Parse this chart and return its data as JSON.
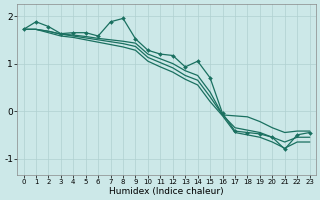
{
  "xlabel": "Humidex (Indice chaleur)",
  "bg_color": "#cce8e8",
  "grid_color": "#b0d0d0",
  "line_color": "#1a7060",
  "xlim": [
    -0.5,
    23.5
  ],
  "ylim": [
    -1.35,
    2.25
  ],
  "yticks": [
    -1,
    0,
    1,
    2
  ],
  "xticks": [
    0,
    1,
    2,
    3,
    4,
    5,
    6,
    7,
    8,
    9,
    10,
    11,
    12,
    13,
    14,
    15,
    16,
    17,
    18,
    19,
    20,
    21,
    22,
    23
  ],
  "line_jagged": [
    1.72,
    1.88,
    1.78,
    1.63,
    1.65,
    1.65,
    1.58,
    1.88,
    1.95,
    1.52,
    1.28,
    1.2,
    1.17,
    0.93,
    1.05,
    0.7,
    -0.05,
    -0.42,
    -0.45,
    -0.48,
    -0.55,
    -0.8,
    -0.5,
    -0.45
  ],
  "line_straight1": [
    1.72,
    1.72,
    1.68,
    1.62,
    1.6,
    1.57,
    1.53,
    1.5,
    1.47,
    1.43,
    1.2,
    1.1,
    1.0,
    0.85,
    0.75,
    0.4,
    -0.08,
    -0.1,
    -0.12,
    -0.22,
    -0.35,
    -0.45,
    -0.42,
    -0.42
  ],
  "line_straight2": [
    1.72,
    1.72,
    1.68,
    1.62,
    1.58,
    1.54,
    1.5,
    1.46,
    1.42,
    1.36,
    1.13,
    1.02,
    0.91,
    0.75,
    0.65,
    0.3,
    -0.08,
    -0.35,
    -0.4,
    -0.45,
    -0.55,
    -0.65,
    -0.55,
    -0.55
  ],
  "line_straight3": [
    1.72,
    1.72,
    1.65,
    1.58,
    1.55,
    1.5,
    1.45,
    1.4,
    1.35,
    1.28,
    1.05,
    0.93,
    0.82,
    0.67,
    0.55,
    0.2,
    -0.1,
    -0.45,
    -0.5,
    -0.55,
    -0.65,
    -0.78,
    -0.65,
    -0.65
  ]
}
